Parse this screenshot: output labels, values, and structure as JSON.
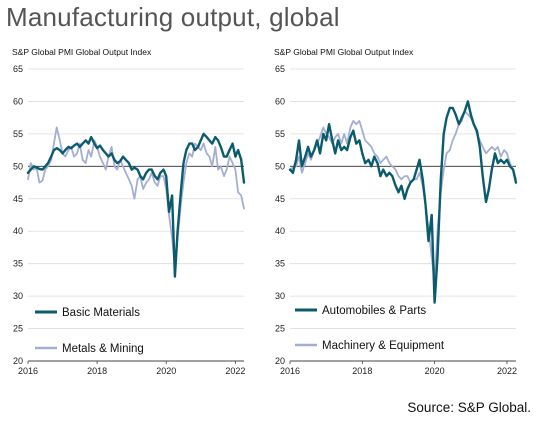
{
  "title": "Manufacturing output, global",
  "source": "Source: S&P Global.",
  "chart_data": [
    {
      "type": "line",
      "subtitle": "S&P Global PMI Global Output Index",
      "ylim": [
        20,
        65
      ],
      "yticks": [
        "65",
        "60",
        "55",
        "50",
        "45",
        "40",
        "35",
        "30",
        "25",
        "20"
      ],
      "xticks": [
        "2016",
        "2018",
        "2020",
        "2022"
      ],
      "xlim": [
        2016.0,
        2022.25
      ],
      "reference_line": 50,
      "grid": true,
      "legend_position": "bottom-left",
      "series": [
        {
          "name": "Basic Materials",
          "color": "#0b5b6e",
          "width": 2.4,
          "x": [
            2016.0,
            2016.08,
            2016.17,
            2016.25,
            2016.33,
            2016.42,
            2016.5,
            2016.58,
            2016.67,
            2016.75,
            2016.83,
            2016.92,
            2017.0,
            2017.08,
            2017.17,
            2017.25,
            2017.33,
            2017.42,
            2017.5,
            2017.58,
            2017.67,
            2017.75,
            2017.83,
            2017.92,
            2018.0,
            2018.08,
            2018.17,
            2018.25,
            2018.33,
            2018.42,
            2018.5,
            2018.58,
            2018.67,
            2018.75,
            2018.83,
            2018.92,
            2019.0,
            2019.08,
            2019.17,
            2019.25,
            2019.33,
            2019.42,
            2019.5,
            2019.58,
            2019.67,
            2019.75,
            2019.83,
            2019.92,
            2020.0,
            2020.08,
            2020.17,
            2020.25,
            2020.33,
            2020.42,
            2020.5,
            2020.58,
            2020.67,
            2020.75,
            2020.83,
            2020.92,
            2021.0,
            2021.08,
            2021.17,
            2021.25,
            2021.33,
            2021.42,
            2021.5,
            2021.58,
            2021.67,
            2021.75,
            2021.83,
            2021.92,
            2022.0,
            2022.08,
            2022.17,
            2022.25
          ],
          "y": [
            49.0,
            49.5,
            50.0,
            49.8,
            49.6,
            49.5,
            50.0,
            50.5,
            51.5,
            52.5,
            52.8,
            52.5,
            52.0,
            52.5,
            53.0,
            52.8,
            53.2,
            53.5,
            53.0,
            53.5,
            54.0,
            53.5,
            54.5,
            53.5,
            52.8,
            53.2,
            52.5,
            52.0,
            51.5,
            52.0,
            51.0,
            50.5,
            50.8,
            51.5,
            51.0,
            50.5,
            49.5,
            49.8,
            49.5,
            48.5,
            48.0,
            49.0,
            49.5,
            49.5,
            48.5,
            48.0,
            49.0,
            49.5,
            48.5,
            43.0,
            45.5,
            33.0,
            40.0,
            46.0,
            50.5,
            52.5,
            53.5,
            53.5,
            52.5,
            53.0,
            54.0,
            55.0,
            54.5,
            54.0,
            53.5,
            54.5,
            54.0,
            53.0,
            51.5,
            51.5,
            52.5,
            53.5,
            51.5,
            52.5,
            51.0,
            47.5
          ]
        },
        {
          "name": "Metals & Mining",
          "color": "#a3aed2",
          "width": 1.8,
          "x": [
            2016.0,
            2016.08,
            2016.17,
            2016.25,
            2016.33,
            2016.42,
            2016.5,
            2016.58,
            2016.67,
            2016.75,
            2016.83,
            2016.92,
            2017.0,
            2017.08,
            2017.17,
            2017.25,
            2017.33,
            2017.42,
            2017.5,
            2017.58,
            2017.67,
            2017.75,
            2017.83,
            2017.92,
            2018.0,
            2018.08,
            2018.17,
            2018.25,
            2018.33,
            2018.42,
            2018.5,
            2018.58,
            2018.67,
            2018.75,
            2018.83,
            2018.92,
            2019.0,
            2019.08,
            2019.17,
            2019.25,
            2019.33,
            2019.42,
            2019.5,
            2019.58,
            2019.67,
            2019.75,
            2019.83,
            2019.92,
            2020.0,
            2020.08,
            2020.17,
            2020.25,
            2020.33,
            2020.42,
            2020.5,
            2020.58,
            2020.67,
            2020.75,
            2020.83,
            2020.92,
            2021.0,
            2021.08,
            2021.17,
            2021.25,
            2021.33,
            2021.42,
            2021.5,
            2021.58,
            2021.67,
            2021.75,
            2021.83,
            2021.92,
            2022.0,
            2022.08,
            2022.17,
            2022.25
          ],
          "y": [
            48.0,
            50.5,
            49.5,
            49.8,
            47.5,
            47.8,
            49.5,
            50.0,
            51.0,
            53.5,
            56.0,
            54.0,
            52.0,
            51.5,
            52.5,
            53.0,
            51.5,
            52.0,
            53.5,
            51.0,
            50.5,
            52.5,
            51.5,
            54.0,
            53.0,
            51.5,
            50.5,
            49.5,
            51.5,
            53.0,
            50.0,
            49.5,
            51.0,
            50.0,
            49.0,
            48.0,
            47.0,
            45.0,
            48.0,
            48.5,
            46.5,
            47.5,
            48.0,
            49.0,
            47.5,
            47.0,
            48.5,
            48.5,
            46.5,
            42.5,
            39.0,
            34.5,
            39.0,
            44.0,
            47.5,
            50.5,
            52.0,
            51.5,
            53.5,
            53.0,
            52.5,
            53.5,
            52.0,
            51.5,
            50.0,
            53.0,
            49.5,
            50.0,
            48.5,
            49.5,
            51.5,
            50.5,
            49.5,
            46.0,
            45.5,
            43.5
          ]
        }
      ]
    },
    {
      "type": "line",
      "subtitle": "S&P Global PMI Global Output Index",
      "ylim": [
        20,
        65
      ],
      "yticks": [
        "65",
        "60",
        "55",
        "50",
        "45",
        "40",
        "35",
        "30",
        "25",
        "20"
      ],
      "xticks": [
        "2016",
        "2018",
        "2020",
        "2022"
      ],
      "xlim": [
        2016.0,
        2022.25
      ],
      "reference_line": 50,
      "grid": true,
      "legend_position": "bottom-left",
      "series": [
        {
          "name": "Automobiles & Parts",
          "color": "#0b5b6e",
          "width": 2.4,
          "x": [
            2016.0,
            2016.08,
            2016.17,
            2016.25,
            2016.33,
            2016.42,
            2016.5,
            2016.58,
            2016.67,
            2016.75,
            2016.83,
            2016.92,
            2017.0,
            2017.08,
            2017.17,
            2017.25,
            2017.33,
            2017.42,
            2017.5,
            2017.58,
            2017.67,
            2017.75,
            2017.83,
            2017.92,
            2018.0,
            2018.08,
            2018.17,
            2018.25,
            2018.33,
            2018.42,
            2018.5,
            2018.58,
            2018.67,
            2018.75,
            2018.83,
            2018.92,
            2019.0,
            2019.08,
            2019.17,
            2019.25,
            2019.33,
            2019.42,
            2019.5,
            2019.58,
            2019.67,
            2019.75,
            2019.83,
            2019.92,
            2020.0,
            2020.08,
            2020.17,
            2020.25,
            2020.33,
            2020.42,
            2020.5,
            2020.58,
            2020.67,
            2020.75,
            2020.83,
            2020.92,
            2021.0,
            2021.08,
            2021.17,
            2021.25,
            2021.33,
            2021.42,
            2021.5,
            2021.58,
            2021.67,
            2021.75,
            2021.83,
            2021.92,
            2022.0,
            2022.08,
            2022.17,
            2022.25
          ],
          "y": [
            49.5,
            49.0,
            51.0,
            54.0,
            50.0,
            51.5,
            53.0,
            51.5,
            52.5,
            54.0,
            52.0,
            55.0,
            54.0,
            56.5,
            54.0,
            52.0,
            54.0,
            52.5,
            53.0,
            52.5,
            54.5,
            55.5,
            53.5,
            54.0,
            52.0,
            50.5,
            51.0,
            50.0,
            51.5,
            50.5,
            48.5,
            49.5,
            48.5,
            49.0,
            48.5,
            47.0,
            46.0,
            47.0,
            45.0,
            46.5,
            47.5,
            48.0,
            49.5,
            51.0,
            48.0,
            44.0,
            38.5,
            42.5,
            29.0,
            36.0,
            48.0,
            55.0,
            57.5,
            59.0,
            59.0,
            58.0,
            56.5,
            57.5,
            58.5,
            60.0,
            58.0,
            56.5,
            55.5,
            53.0,
            48.5,
            44.5,
            46.5,
            49.5,
            52.0,
            50.5,
            51.0,
            50.5,
            51.0,
            50.0,
            49.5,
            47.5
          ]
        },
        {
          "name": "Machinery & Equipment",
          "color": "#a3aed2",
          "width": 1.8,
          "x": [
            2016.0,
            2016.08,
            2016.17,
            2016.25,
            2016.33,
            2016.42,
            2016.5,
            2016.58,
            2016.67,
            2016.75,
            2016.83,
            2016.92,
            2017.0,
            2017.08,
            2017.17,
            2017.25,
            2017.33,
            2017.42,
            2017.5,
            2017.58,
            2017.67,
            2017.75,
            2017.83,
            2017.92,
            2018.0,
            2018.08,
            2018.17,
            2018.25,
            2018.33,
            2018.42,
            2018.5,
            2018.58,
            2018.67,
            2018.75,
            2018.83,
            2018.92,
            2019.0,
            2019.08,
            2019.17,
            2019.25,
            2019.33,
            2019.42,
            2019.5,
            2019.58,
            2019.67,
            2019.75,
            2019.83,
            2019.92,
            2020.0,
            2020.08,
            2020.17,
            2020.25,
            2020.33,
            2020.42,
            2020.5,
            2020.58,
            2020.67,
            2020.75,
            2020.83,
            2020.92,
            2021.0,
            2021.08,
            2021.17,
            2021.25,
            2021.33,
            2021.42,
            2021.5,
            2021.58,
            2021.67,
            2021.75,
            2021.83,
            2021.92,
            2022.0,
            2022.08,
            2022.17,
            2022.25
          ],
          "y": [
            49.5,
            49.8,
            50.0,
            51.5,
            49.0,
            50.5,
            52.0,
            51.0,
            52.5,
            53.5,
            54.5,
            56.0,
            55.0,
            54.5,
            53.5,
            54.5,
            55.0,
            53.5,
            55.0,
            53.5,
            56.0,
            57.0,
            56.5,
            57.0,
            55.5,
            54.0,
            53.5,
            53.0,
            52.0,
            51.5,
            50.5,
            51.0,
            51.5,
            50.5,
            50.0,
            49.5,
            48.5,
            48.0,
            48.5,
            48.5,
            47.5,
            48.0,
            48.0,
            49.0,
            47.0,
            44.0,
            40.5,
            36.0,
            32.0,
            40.0,
            46.0,
            49.5,
            52.0,
            52.5,
            54.0,
            55.0,
            56.5,
            57.0,
            58.5,
            58.0,
            57.5,
            56.5,
            55.0,
            54.0,
            53.0,
            52.0,
            52.5,
            53.0,
            52.5,
            53.0,
            51.5,
            52.5,
            52.0,
            50.5,
            49.5,
            48.0
          ]
        }
      ]
    }
  ]
}
